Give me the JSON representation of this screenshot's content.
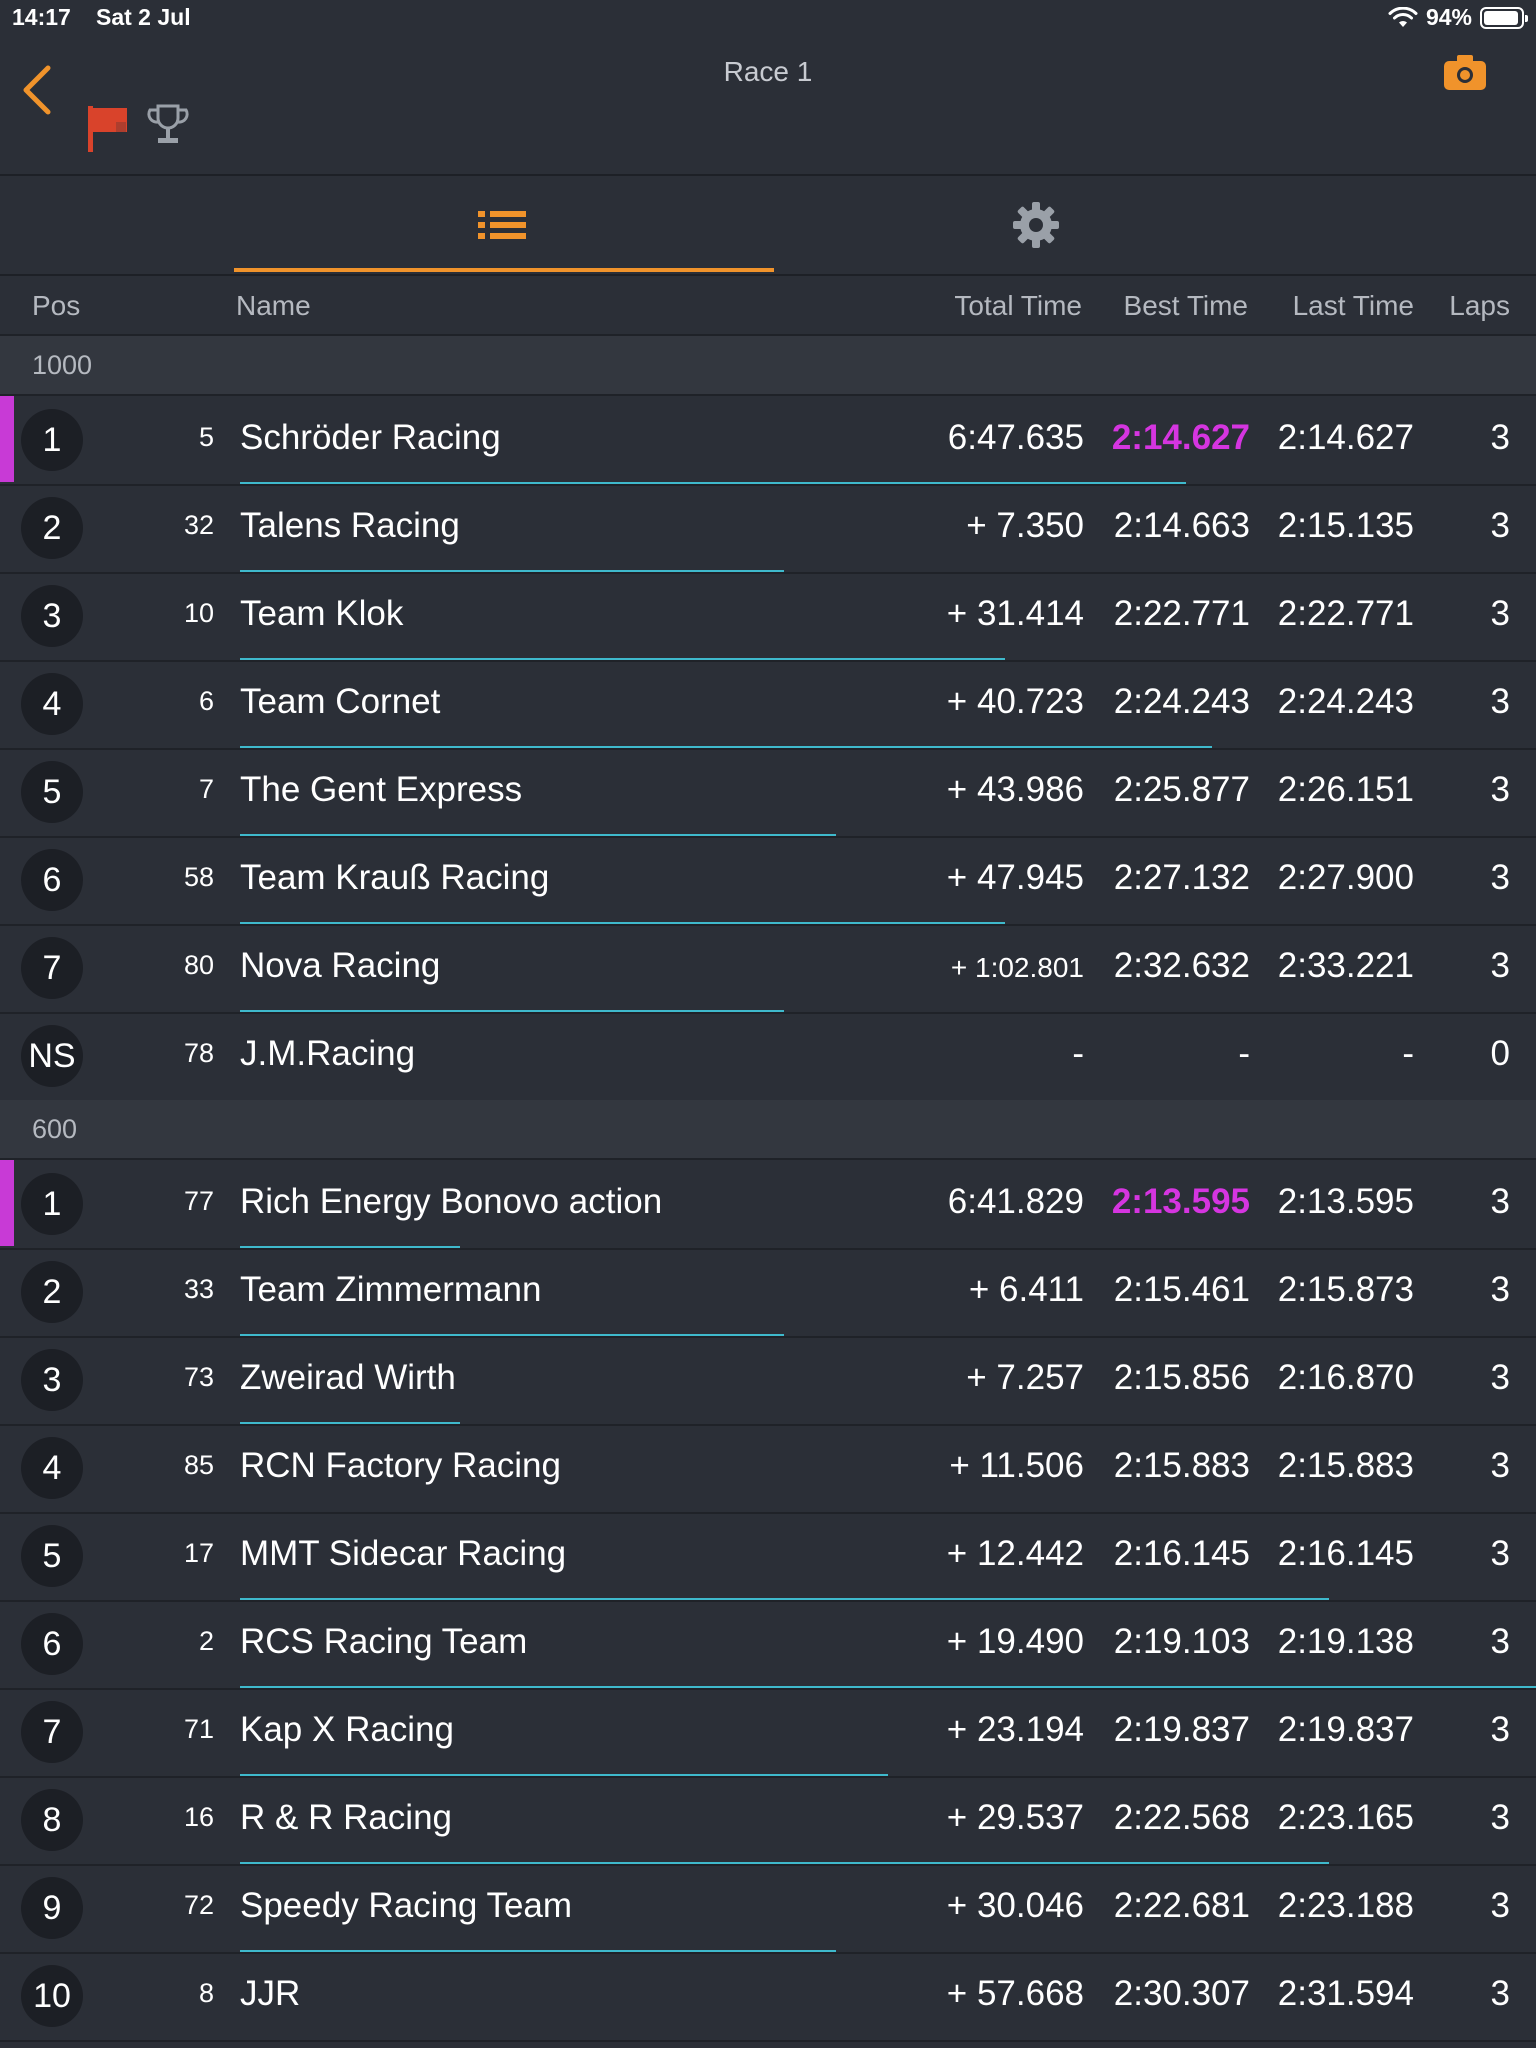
{
  "status_bar": {
    "time": "14:17",
    "date": "Sat 2 Jul",
    "battery": "94%",
    "battery_level": 0.94
  },
  "nav": {
    "title": "Race 1",
    "icons": [
      "back-chevron-icon",
      "flag-icon",
      "trophy-icon",
      "camera-icon"
    ]
  },
  "tabs": [
    {
      "name": "list",
      "icon": "list-icon",
      "active": true
    },
    {
      "name": "settings",
      "icon": "gear-icon",
      "active": false
    }
  ],
  "columns": {
    "pos": "Pos",
    "name": "Name",
    "total": "Total Time",
    "best": "Best Time",
    "last": "Last Time",
    "laps": "Laps"
  },
  "colors": {
    "accent": "#f0932b",
    "fastest": "#d535e0",
    "progress": "#3fb9cc",
    "flag": "#d9432b"
  },
  "sections": [
    {
      "label": "1000",
      "rows": [
        {
          "pos": "1",
          "num": "5",
          "name": "Schröder Racing",
          "total": "6:47.635",
          "best": "2:14.627",
          "last": "2:14.627",
          "laps": "3",
          "leader": true,
          "fastest": true,
          "progress": 0.73
        },
        {
          "pos": "2",
          "num": "32",
          "name": "Talens Racing",
          "total": "+ 7.350",
          "best": "2:14.663",
          "last": "2:15.135",
          "laps": "3",
          "progress": 0.42
        },
        {
          "pos": "3",
          "num": "10",
          "name": "Team Klok",
          "total": "+ 31.414",
          "best": "2:22.771",
          "last": "2:22.771",
          "laps": "3",
          "progress": 0.59
        },
        {
          "pos": "4",
          "num": "6",
          "name": "Team Cornet",
          "total": "+ 40.723",
          "best": "2:24.243",
          "last": "2:24.243",
          "laps": "3",
          "progress": 0.75
        },
        {
          "pos": "5",
          "num": "7",
          "name": "The Gent Express",
          "total": "+ 43.986",
          "best": "2:25.877",
          "last": "2:26.151",
          "laps": "3",
          "progress": 0.46
        },
        {
          "pos": "6",
          "num": "58",
          "name": "Team Krauß Racing",
          "total": "+ 47.945",
          "best": "2:27.132",
          "last": "2:27.900",
          "laps": "3",
          "progress": 0.59
        },
        {
          "pos": "7",
          "num": "80",
          "name": "Nova Racing",
          "total": "+ 1:02.801",
          "best": "2:32.632",
          "last": "2:33.221",
          "laps": "3",
          "small_total": true,
          "progress": 0.42
        },
        {
          "pos": "NS",
          "num": "78",
          "name": "J.M.Racing",
          "total": "-",
          "best": "-",
          "last": "-",
          "laps": "0",
          "progress": 0
        }
      ]
    },
    {
      "label": "600",
      "rows": [
        {
          "pos": "1",
          "num": "77",
          "name": "Rich Energy Bonovo action",
          "total": "6:41.829",
          "best": "2:13.595",
          "last": "2:13.595",
          "laps": "3",
          "leader": true,
          "fastest": true,
          "progress": 0.17
        },
        {
          "pos": "2",
          "num": "33",
          "name": "Team Zimmermann",
          "total": "+ 6.411",
          "best": "2:15.461",
          "last": "2:15.873",
          "laps": "3",
          "progress": 0.42
        },
        {
          "pos": "3",
          "num": "73",
          "name": "Zweirad Wirth",
          "total": "+ 7.257",
          "best": "2:15.856",
          "last": "2:16.870",
          "laps": "3",
          "progress": 0.17
        },
        {
          "pos": "4",
          "num": "85",
          "name": "RCN Factory Racing",
          "total": "+ 11.506",
          "best": "2:15.883",
          "last": "2:15.883",
          "laps": "3",
          "progress": 0
        },
        {
          "pos": "5",
          "num": "17",
          "name": "MMT Sidecar Racing",
          "total": "+ 12.442",
          "best": "2:16.145",
          "last": "2:16.145",
          "laps": "3",
          "progress": 0.84
        },
        {
          "pos": "6",
          "num": "2",
          "name": "RCS Racing Team",
          "total": "+ 19.490",
          "best": "2:19.103",
          "last": "2:19.138",
          "laps": "3",
          "progress": 1.0
        },
        {
          "pos": "7",
          "num": "71",
          "name": "Kap X Racing",
          "total": "+ 23.194",
          "best": "2:19.837",
          "last": "2:19.837",
          "laps": "3",
          "progress": 0.5
        },
        {
          "pos": "8",
          "num": "16",
          "name": "R & R Racing",
          "total": "+ 29.537",
          "best": "2:22.568",
          "last": "2:23.165",
          "laps": "3",
          "progress": 0.84
        },
        {
          "pos": "9",
          "num": "72",
          "name": "Speedy Racing Team",
          "total": "+ 30.046",
          "best": "2:22.681",
          "last": "2:23.188",
          "laps": "3",
          "progress": 0.46
        },
        {
          "pos": "10",
          "num": "8",
          "name": "JJR",
          "total": "+ 57.668",
          "best": "2:30.307",
          "last": "2:31.594",
          "laps": "3",
          "progress": 0
        }
      ]
    }
  ]
}
